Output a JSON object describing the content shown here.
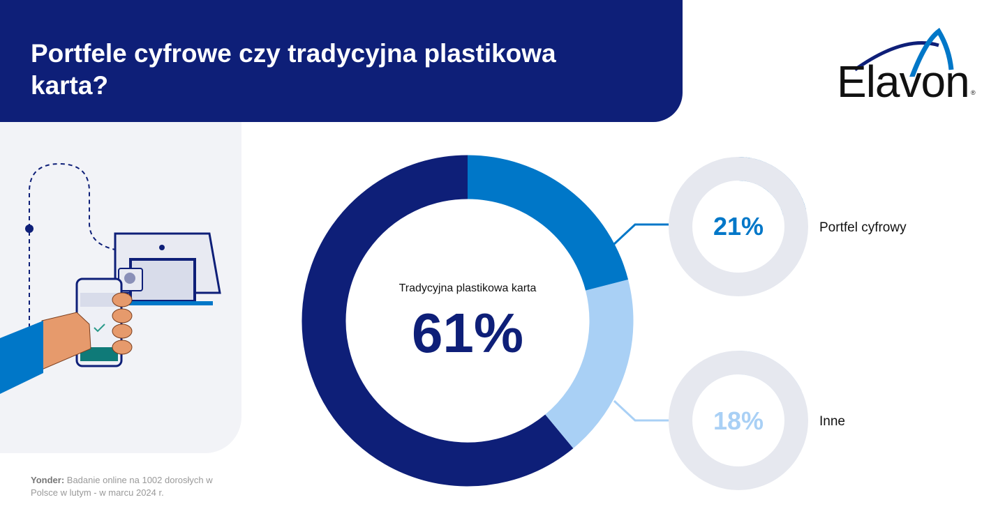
{
  "header": {
    "title": "Portfele cyfrowe czy tradycyjna plastikowa karta?"
  },
  "logo": {
    "text": "Elavon",
    "registered": "®"
  },
  "source": {
    "bold": "Yonder:",
    "text": " Badanie online na 1002 dorosłych w Polsce w lutym - w marcu 2024 r."
  },
  "colors": {
    "navy": "#0e1f78",
    "blue": "#0077c8",
    "light_blue": "#a9d0f5",
    "gray": "#e6e8ef"
  },
  "chart_data": {
    "type": "pie",
    "title": "Portfele cyfrowe czy tradycyjna plastikowa karta?",
    "categories": [
      "Portfel cyfrowy",
      "Inne",
      "Tradycyjna plastikowa karta"
    ],
    "values": [
      21,
      18,
      61
    ],
    "labels": [
      "21%",
      "18%",
      "61%"
    ],
    "colors": [
      "#0077c8",
      "#a9d0f5",
      "#0e1f78"
    ]
  }
}
